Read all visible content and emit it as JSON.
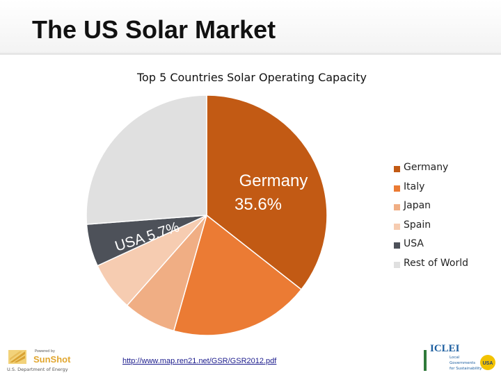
{
  "slide": {
    "title": "The US Solar Market"
  },
  "chart_data": {
    "type": "pie",
    "title": "Top 5 Countries Solar Operating Capacity",
    "start_angle_deg": 0,
    "direction": "clockwise",
    "slices": [
      {
        "name": "Germany",
        "value": 35.6,
        "color": "#c25a14"
      },
      {
        "name": "Italy",
        "value": 18.8,
        "color": "#eb7b34"
      },
      {
        "name": "Japan",
        "value": 7.1,
        "color": "#f0ae84"
      },
      {
        "name": "Spain",
        "value": 6.6,
        "color": "#f6ccb1"
      },
      {
        "name": "USA",
        "value": 5.7,
        "color": "#4d5159"
      },
      {
        "name": "Rest of World",
        "value": 26.2,
        "color": "#e0e0e0"
      }
    ],
    "data_labels": [
      {
        "line1": "Germany",
        "line2": "35.6%"
      },
      {
        "line1": "USA",
        "line2": "5.7%"
      }
    ],
    "legend_position": "right"
  },
  "source": {
    "url": "http://www.map.ren21.net/GSR/GSR2012.pdf"
  },
  "logos": {
    "sunshot": {
      "powered_by": "Powered by",
      "name": "SunShot",
      "dept": "U.S. Department of Energy"
    },
    "iclei": {
      "name": "ICLEI",
      "line1": "Local",
      "line2": "Governments",
      "line3": "for Sustainability",
      "badge": "USA"
    }
  }
}
